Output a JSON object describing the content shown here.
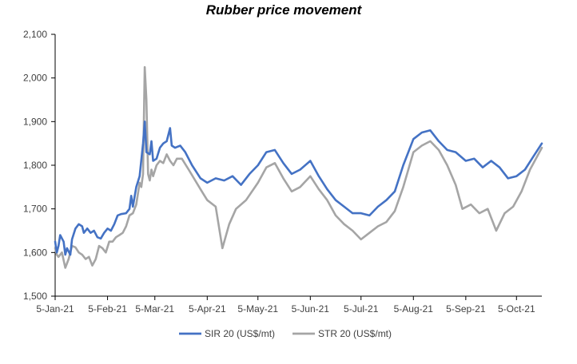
{
  "chart_data": {
    "type": "line",
    "title": "Rubber price movement",
    "xlabel": "",
    "ylabel": "",
    "ylim": [
      1500,
      2100
    ],
    "y_ticks": [
      "1,500",
      "1,600",
      "1,700",
      "1,800",
      "1,900",
      "2,000",
      "2,100"
    ],
    "x_tick_labels": [
      "5-Jan-21",
      "5-Feb-21",
      "5-Mar-21",
      "5-Apr-21",
      "5-May-21",
      "5-Jun-21",
      "5-Jul-21",
      "5-Aug-21",
      "5-Sep-21",
      "5-Oct-21"
    ],
    "x_range": [
      "2021-01-05",
      "2021-10-20"
    ],
    "grid": false,
    "legend_position": "bottom",
    "series": [
      {
        "name": "SIR 20 (US$/mt)",
        "color": "#4472C4",
        "points": [
          [
            "2021-01-05",
            1625
          ],
          [
            "2021-01-06",
            1600
          ],
          [
            "2021-01-07",
            1615
          ],
          [
            "2021-01-08",
            1640
          ],
          [
            "2021-01-10",
            1625
          ],
          [
            "2021-01-11",
            1595
          ],
          [
            "2021-01-12",
            1610
          ],
          [
            "2021-01-14",
            1595
          ],
          [
            "2021-01-15",
            1630
          ],
          [
            "2021-01-17",
            1655
          ],
          [
            "2021-01-19",
            1665
          ],
          [
            "2021-01-21",
            1660
          ],
          [
            "2021-01-22",
            1645
          ],
          [
            "2021-01-24",
            1655
          ],
          [
            "2021-01-26",
            1645
          ],
          [
            "2021-01-28",
            1650
          ],
          [
            "2021-01-30",
            1635
          ],
          [
            "2021-02-01",
            1632
          ],
          [
            "2021-02-03",
            1645
          ],
          [
            "2021-02-05",
            1655
          ],
          [
            "2021-02-07",
            1650
          ],
          [
            "2021-02-09",
            1665
          ],
          [
            "2021-02-11",
            1685
          ],
          [
            "2021-02-13",
            1688
          ],
          [
            "2021-02-16",
            1690
          ],
          [
            "2021-02-18",
            1700
          ],
          [
            "2021-02-19",
            1730
          ],
          [
            "2021-02-20",
            1705
          ],
          [
            "2021-02-22",
            1750
          ],
          [
            "2021-02-24",
            1775
          ],
          [
            "2021-02-26",
            1850
          ],
          [
            "2021-02-27",
            1900
          ],
          [
            "2021-02-28",
            1830
          ],
          [
            "2021-03-02",
            1825
          ],
          [
            "2021-03-03",
            1855
          ],
          [
            "2021-03-04",
            1810
          ],
          [
            "2021-03-06",
            1815
          ],
          [
            "2021-03-08",
            1840
          ],
          [
            "2021-03-10",
            1850
          ],
          [
            "2021-03-12",
            1855
          ],
          [
            "2021-03-14",
            1885
          ],
          [
            "2021-03-15",
            1845
          ],
          [
            "2021-03-17",
            1840
          ],
          [
            "2021-03-20",
            1845
          ],
          [
            "2021-03-23",
            1830
          ],
          [
            "2021-03-27",
            1800
          ],
          [
            "2021-04-01",
            1770
          ],
          [
            "2021-04-05",
            1760
          ],
          [
            "2021-04-10",
            1770
          ],
          [
            "2021-04-15",
            1765
          ],
          [
            "2021-04-20",
            1775
          ],
          [
            "2021-04-25",
            1755
          ],
          [
            "2021-04-30",
            1780
          ],
          [
            "2021-05-05",
            1800
          ],
          [
            "2021-05-10",
            1830
          ],
          [
            "2021-05-15",
            1835
          ],
          [
            "2021-05-20",
            1805
          ],
          [
            "2021-05-25",
            1780
          ],
          [
            "2021-05-30",
            1790
          ],
          [
            "2021-06-05",
            1810
          ],
          [
            "2021-06-10",
            1775
          ],
          [
            "2021-06-15",
            1745
          ],
          [
            "2021-06-20",
            1720
          ],
          [
            "2021-06-25",
            1705
          ],
          [
            "2021-06-30",
            1690
          ],
          [
            "2021-07-05",
            1690
          ],
          [
            "2021-07-10",
            1685
          ],
          [
            "2021-07-15",
            1705
          ],
          [
            "2021-07-20",
            1720
          ],
          [
            "2021-07-25",
            1740
          ],
          [
            "2021-07-30",
            1800
          ],
          [
            "2021-08-05",
            1860
          ],
          [
            "2021-08-10",
            1875
          ],
          [
            "2021-08-15",
            1880
          ],
          [
            "2021-08-20",
            1855
          ],
          [
            "2021-08-25",
            1835
          ],
          [
            "2021-08-30",
            1830
          ],
          [
            "2021-09-05",
            1810
          ],
          [
            "2021-09-10",
            1815
          ],
          [
            "2021-09-15",
            1795
          ],
          [
            "2021-09-20",
            1810
          ],
          [
            "2021-09-25",
            1795
          ],
          [
            "2021-09-30",
            1770
          ],
          [
            "2021-10-05",
            1775
          ],
          [
            "2021-10-10",
            1790
          ],
          [
            "2021-10-15",
            1820
          ],
          [
            "2021-10-20",
            1850
          ]
        ]
      },
      {
        "name": "STR 20 (US$/mt)",
        "color": "#A5A5A5",
        "points": [
          [
            "2021-01-05",
            1610
          ],
          [
            "2021-01-06",
            1595
          ],
          [
            "2021-01-07",
            1590
          ],
          [
            "2021-01-09",
            1600
          ],
          [
            "2021-01-11",
            1565
          ],
          [
            "2021-01-13",
            1585
          ],
          [
            "2021-01-15",
            1615
          ],
          [
            "2021-01-17",
            1612
          ],
          [
            "2021-01-19",
            1600
          ],
          [
            "2021-01-21",
            1595
          ],
          [
            "2021-01-23",
            1585
          ],
          [
            "2021-01-25",
            1590
          ],
          [
            "2021-01-27",
            1570
          ],
          [
            "2021-01-29",
            1585
          ],
          [
            "2021-01-31",
            1615
          ],
          [
            "2021-02-02",
            1610
          ],
          [
            "2021-02-04",
            1600
          ],
          [
            "2021-02-06",
            1625
          ],
          [
            "2021-02-08",
            1625
          ],
          [
            "2021-02-10",
            1635
          ],
          [
            "2021-02-12",
            1640
          ],
          [
            "2021-02-14",
            1645
          ],
          [
            "2021-02-16",
            1660
          ],
          [
            "2021-02-18",
            1685
          ],
          [
            "2021-02-20",
            1690
          ],
          [
            "2021-02-22",
            1710
          ],
          [
            "2021-02-24",
            1760
          ],
          [
            "2021-02-25",
            1750
          ],
          [
            "2021-02-26",
            1780
          ],
          [
            "2021-02-27",
            2025
          ],
          [
            "2021-02-28",
            1950
          ],
          [
            "2021-03-01",
            1780
          ],
          [
            "2021-03-02",
            1765
          ],
          [
            "2021-03-03",
            1790
          ],
          [
            "2021-03-04",
            1775
          ],
          [
            "2021-03-06",
            1800
          ],
          [
            "2021-03-08",
            1810
          ],
          [
            "2021-03-10",
            1805
          ],
          [
            "2021-03-12",
            1825
          ],
          [
            "2021-03-14",
            1810
          ],
          [
            "2021-03-16",
            1800
          ],
          [
            "2021-03-18",
            1815
          ],
          [
            "2021-03-21",
            1815
          ],
          [
            "2021-03-25",
            1790
          ],
          [
            "2021-04-01",
            1745
          ],
          [
            "2021-04-05",
            1720
          ],
          [
            "2021-04-10",
            1705
          ],
          [
            "2021-04-14",
            1610
          ],
          [
            "2021-04-18",
            1665
          ],
          [
            "2021-04-22",
            1700
          ],
          [
            "2021-04-28",
            1720
          ],
          [
            "2021-05-05",
            1760
          ],
          [
            "2021-05-10",
            1795
          ],
          [
            "2021-05-15",
            1805
          ],
          [
            "2021-05-20",
            1770
          ],
          [
            "2021-05-25",
            1740
          ],
          [
            "2021-05-30",
            1750
          ],
          [
            "2021-06-05",
            1775
          ],
          [
            "2021-06-10",
            1745
          ],
          [
            "2021-06-15",
            1720
          ],
          [
            "2021-06-20",
            1685
          ],
          [
            "2021-06-25",
            1665
          ],
          [
            "2021-06-30",
            1650
          ],
          [
            "2021-07-05",
            1630
          ],
          [
            "2021-07-10",
            1645
          ],
          [
            "2021-07-15",
            1660
          ],
          [
            "2021-07-20",
            1670
          ],
          [
            "2021-07-25",
            1695
          ],
          [
            "2021-07-30",
            1750
          ],
          [
            "2021-08-05",
            1830
          ],
          [
            "2021-08-10",
            1845
          ],
          [
            "2021-08-15",
            1855
          ],
          [
            "2021-08-20",
            1835
          ],
          [
            "2021-08-25",
            1800
          ],
          [
            "2021-08-30",
            1755
          ],
          [
            "2021-09-03",
            1700
          ],
          [
            "2021-09-08",
            1710
          ],
          [
            "2021-09-13",
            1690
          ],
          [
            "2021-09-18",
            1700
          ],
          [
            "2021-09-23",
            1650
          ],
          [
            "2021-09-28",
            1690
          ],
          [
            "2021-10-03",
            1705
          ],
          [
            "2021-10-08",
            1740
          ],
          [
            "2021-10-13",
            1790
          ],
          [
            "2021-10-20",
            1840
          ]
        ]
      }
    ]
  }
}
